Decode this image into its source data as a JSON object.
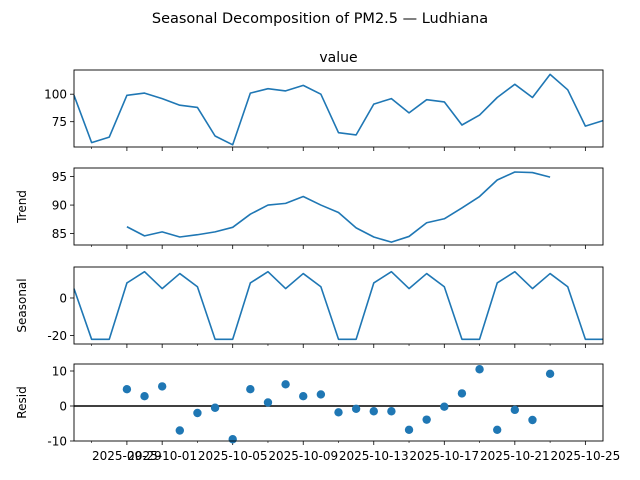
{
  "title": "Seasonal Decomposition of PM2.5 — Ludhiana",
  "chart_data": [
    {
      "type": "line",
      "title": "value",
      "ylabel": "",
      "ylim": [
        52,
        122
      ],
      "yticks": [
        75,
        100
      ],
      "x": [
        "2025-09-26",
        "2025-09-27",
        "2025-09-28",
        "2025-09-29",
        "2025-09-30",
        "2025-10-01",
        "2025-10-02",
        "2025-10-03",
        "2025-10-04",
        "2025-10-05",
        "2025-10-06",
        "2025-10-07",
        "2025-10-08",
        "2025-10-09",
        "2025-10-10",
        "2025-10-11",
        "2025-10-12",
        "2025-10-13",
        "2025-10-14",
        "2025-10-15",
        "2025-10-16",
        "2025-10-17",
        "2025-10-18",
        "2025-10-19",
        "2025-10-20",
        "2025-10-21",
        "2025-10-22",
        "2025-10-23",
        "2025-10-24",
        "2025-10-25",
        "2025-10-26"
      ],
      "values": [
        99,
        56,
        61,
        99,
        101,
        96,
        90,
        88,
        62,
        54,
        101,
        105,
        103,
        108,
        100,
        65,
        63,
        91,
        96,
        83,
        95,
        93,
        72,
        81,
        97,
        109,
        97,
        118,
        104,
        71,
        76
      ]
    },
    {
      "type": "line",
      "ylabel": "Trend",
      "ylim": [
        83,
        96.5
      ],
      "yticks": [
        85,
        90,
        95
      ],
      "x": [
        "2025-09-29",
        "2025-09-30",
        "2025-10-01",
        "2025-10-02",
        "2025-10-03",
        "2025-10-04",
        "2025-10-05",
        "2025-10-06",
        "2025-10-07",
        "2025-10-08",
        "2025-10-09",
        "2025-10-10",
        "2025-10-11",
        "2025-10-12",
        "2025-10-13",
        "2025-10-14",
        "2025-10-15",
        "2025-10-16",
        "2025-10-17",
        "2025-10-18",
        "2025-10-19",
        "2025-10-20",
        "2025-10-21",
        "2025-10-22",
        "2025-10-23"
      ],
      "values": [
        86.2,
        84.6,
        85.3,
        84.4,
        84.8,
        85.3,
        86.1,
        88.4,
        90.0,
        90.3,
        91.5,
        90.0,
        88.7,
        86.0,
        84.4,
        83.5,
        84.5,
        86.9,
        87.6,
        89.5,
        91.5,
        94.4,
        95.8,
        95.7,
        94.9
      ]
    },
    {
      "type": "line",
      "ylabel": "Seasonal",
      "ylim": [
        -24.5,
        16.5
      ],
      "yticks": [
        -20,
        0
      ],
      "x": [
        "2025-09-26",
        "2025-09-27",
        "2025-09-28",
        "2025-09-29",
        "2025-09-30",
        "2025-10-01",
        "2025-10-02",
        "2025-10-03",
        "2025-10-04",
        "2025-10-05",
        "2025-10-06",
        "2025-10-07",
        "2025-10-08",
        "2025-10-09",
        "2025-10-10",
        "2025-10-11",
        "2025-10-12",
        "2025-10-13",
        "2025-10-14",
        "2025-10-15",
        "2025-10-16",
        "2025-10-17",
        "2025-10-18",
        "2025-10-19",
        "2025-10-20",
        "2025-10-21",
        "2025-10-22",
        "2025-10-23",
        "2025-10-24",
        "2025-10-25",
        "2025-10-26"
      ],
      "values": [
        5,
        -22,
        -22,
        8,
        14,
        5,
        13,
        6,
        -22,
        -22,
        8,
        14,
        5,
        13,
        6,
        -22,
        -22,
        8,
        14,
        5,
        13,
        6,
        -22,
        -22,
        8,
        14,
        5,
        13,
        6,
        -22,
        -22
      ]
    },
    {
      "type": "scatter",
      "ylabel": "Resid",
      "ylim": [
        -10,
        12
      ],
      "yticks": [
        -10,
        0,
        10
      ],
      "baseline": 0,
      "x": [
        "2025-09-29",
        "2025-09-30",
        "2025-10-01",
        "2025-10-02",
        "2025-10-03",
        "2025-10-04",
        "2025-10-05",
        "2025-10-06",
        "2025-10-07",
        "2025-10-08",
        "2025-10-09",
        "2025-10-10",
        "2025-10-11",
        "2025-10-12",
        "2025-10-13",
        "2025-10-14",
        "2025-10-15",
        "2025-10-16",
        "2025-10-17",
        "2025-10-18",
        "2025-10-19",
        "2025-10-20",
        "2025-10-21",
        "2025-10-22",
        "2025-10-23"
      ],
      "values": [
        4.8,
        2.8,
        5.6,
        -7,
        -2,
        -0.5,
        -9.5,
        4.8,
        1,
        6.2,
        2.8,
        3.3,
        -1.8,
        -0.8,
        -1.5,
        -1.5,
        -6.8,
        -3.9,
        -0.2,
        3.6,
        10.5,
        -6.8,
        -1.1,
        -4,
        9.2
      ]
    }
  ],
  "x_axis": {
    "range": [
      "2025-09-26",
      "2025-10-26"
    ],
    "tick_labels": [
      "2025-09-29",
      "2025-10-01",
      "2025-10-05",
      "2025-10-09",
      "2025-10-13",
      "2025-10-17",
      "2025-10-21",
      "2025-10-25"
    ],
    "minor_ticks": [
      "2025-09-27",
      "2025-10-03",
      "2025-10-07",
      "2025-10-11",
      "2025-10-15",
      "2025-10-19",
      "2025-10-23"
    ]
  },
  "colors": {
    "line": "#1f77b4",
    "marker": "#1f77b4",
    "baseline": "#000000",
    "axis": "#000000"
  }
}
